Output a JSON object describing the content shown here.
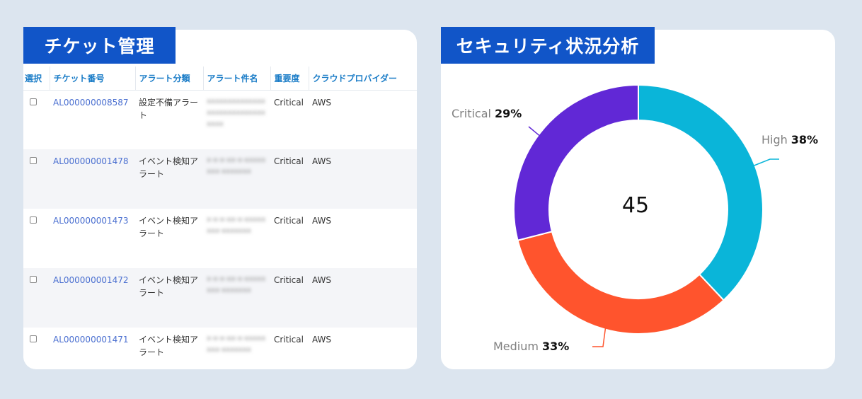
{
  "ticket_panel": {
    "title": "チケット管理",
    "columns": [
      "選択",
      "チケット番号",
      "アラート分類",
      "アラート件名",
      "重要度",
      "クラウドプロバイダー"
    ],
    "rows": [
      {
        "ticket_id": "AL000000008587",
        "category": "設定不備アラート",
        "subject": "xxxxxxxxxxxxxxxxxxxxxxxxxxxxxxxx",
        "severity": "Critical",
        "provider": "AWS"
      },
      {
        "ticket_id": "AL000000001478",
        "category": "イベント検知アラート",
        "subject": "x-x-x-xx-x-xxxxxxxx-xxxxxxx",
        "severity": "Critical",
        "provider": "AWS"
      },
      {
        "ticket_id": "AL000000001473",
        "category": "イベント検知アラート",
        "subject": "x-x-x-xx-x-xxxxxxxx-xxxxxxx",
        "severity": "Critical",
        "provider": "AWS"
      },
      {
        "ticket_id": "AL000000001472",
        "category": "イベント検知アラート",
        "subject": "x-x-x-xx-x-xxxxxxxx-xxxxxxx",
        "severity": "Critical",
        "provider": "AWS"
      },
      {
        "ticket_id": "AL000000001471",
        "category": "イベント検知アラート",
        "subject": "x-x-x-xx-x-xxxxxxxx-xxxxxxx",
        "severity": "Critical",
        "provider": "AWS"
      }
    ]
  },
  "analysis_panel": {
    "title": "セキュリティ状況分析",
    "center_total": "45"
  },
  "chart_data": {
    "type": "pie",
    "subtype": "donut",
    "title": "セキュリティ状況分析",
    "center_label": "45",
    "categories": [
      "High",
      "Medium",
      "Critical"
    ],
    "values": [
      38,
      33,
      29
    ],
    "unit": "%",
    "colors": [
      "#0ab5d9",
      "#ff542d",
      "#6128d6"
    ],
    "labels": [
      {
        "name": "High",
        "pct": "38%"
      },
      {
        "name": "Medium",
        "pct": "33%"
      },
      {
        "name": "Critical",
        "pct": "29%"
      }
    ],
    "legend": "none (leader-line labels)"
  },
  "colors": {
    "page_bg": "#dce5ef",
    "title_band": "#1155c8",
    "header_text": "#1a7cc7",
    "link": "#4a6fd0"
  }
}
